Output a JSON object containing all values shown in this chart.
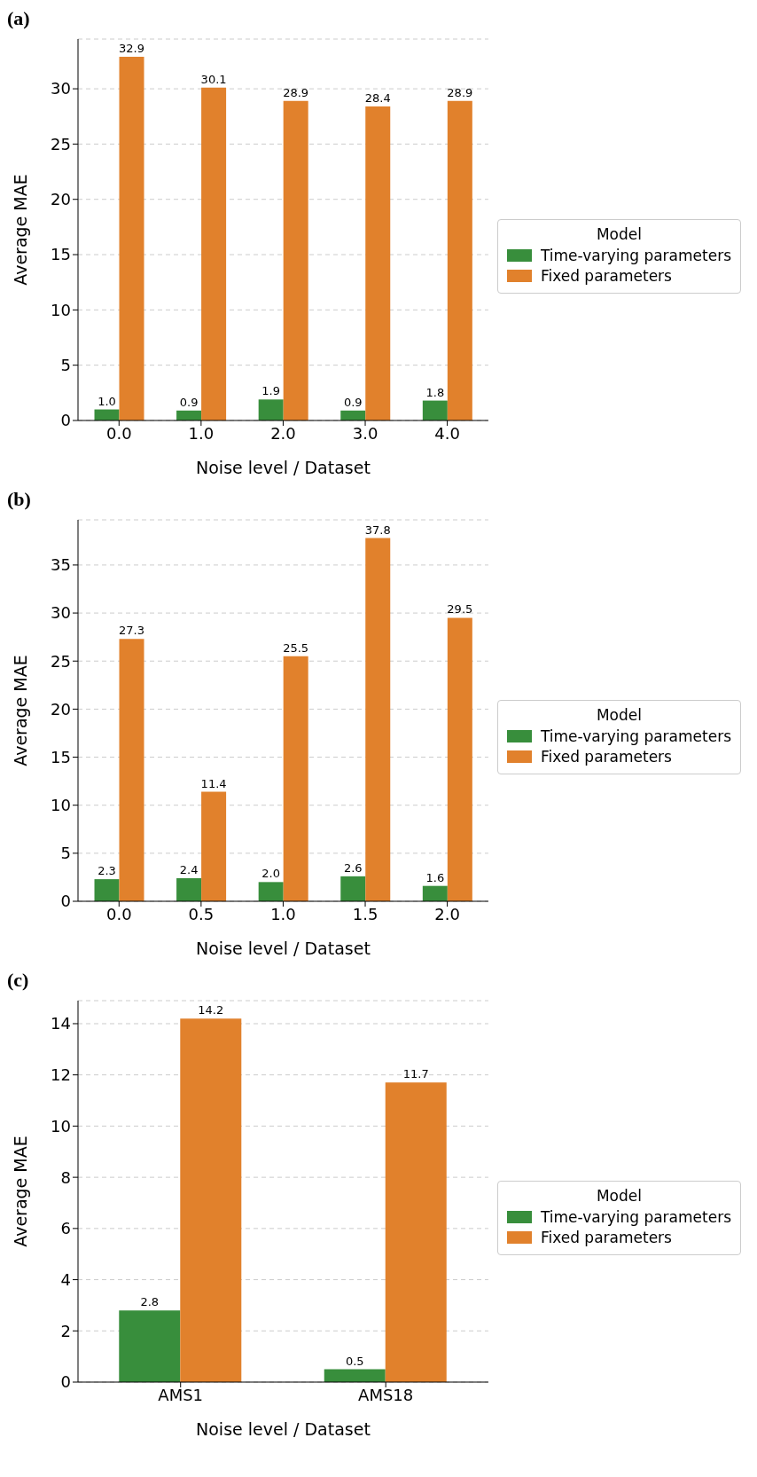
{
  "chart_data": [
    {
      "type": "bar",
      "title": "(a)",
      "xlabel": "Noise level / Dataset",
      "ylabel": "Average MAE",
      "legend_title": "Model",
      "categories": [
        "0.0",
        "1.0",
        "2.0",
        "3.0",
        "4.0"
      ],
      "series": [
        {
          "name": "Time-varying parameters",
          "color": "#388e3c",
          "values": [
            1.0,
            0.9,
            1.9,
            0.9,
            1.8
          ],
          "value_labels": [
            "1.0",
            "0.9",
            "1.9",
            "0.9",
            "1.8"
          ]
        },
        {
          "name": "Fixed parameters",
          "color": "#e1812c",
          "values": [
            32.9,
            30.1,
            28.9,
            28.4,
            28.9
          ]
        }
      ],
      "ylim": [
        0,
        34.5
      ],
      "yticks": [
        0,
        5,
        10,
        15,
        20,
        25,
        30
      ],
      "grid": "y",
      "legend": "right",
      "data_labels": true
    },
    {
      "type": "bar",
      "title": "(b)",
      "xlabel": "Noise level / Dataset",
      "ylabel": "Average MAE",
      "legend_title": "Model",
      "categories": [
        "0.0",
        "0.5",
        "1.0",
        "1.5",
        "2.0"
      ],
      "series": [
        {
          "name": "Time-varying parameters",
          "color": "#388e3c",
          "values": [
            2.3,
            2.4,
            2.0,
            2.6,
            1.6
          ],
          "value_labels": [
            "2.3",
            "2.4",
            "2.0",
            "2.6",
            "1.6"
          ]
        },
        {
          "name": "Fixed parameters",
          "color": "#e1812c",
          "values": [
            27.3,
            11.4,
            25.5,
            37.8,
            29.5
          ]
        }
      ],
      "ylim": [
        0,
        39.7
      ],
      "yticks": [
        0,
        5,
        10,
        15,
        20,
        25,
        30,
        35
      ],
      "grid": "y",
      "legend": "right",
      "data_labels": true
    },
    {
      "type": "bar",
      "title": "(c)",
      "xlabel": "Noise level / Dataset",
      "ylabel": "Average MAE",
      "legend_title": "Model",
      "categories": [
        "AMS1",
        "AMS18"
      ],
      "series": [
        {
          "name": "Time-varying parameters",
          "color": "#388e3c",
          "values": [
            2.8,
            0.5
          ]
        },
        {
          "name": "Fixed parameters",
          "color": "#e1812c",
          "values": [
            14.2,
            11.7
          ]
        }
      ],
      "ylim": [
        0,
        14.9
      ],
      "yticks": [
        0,
        2,
        4,
        6,
        8,
        10,
        12,
        14
      ],
      "grid": "y",
      "legend": "right",
      "data_labels": true
    }
  ]
}
